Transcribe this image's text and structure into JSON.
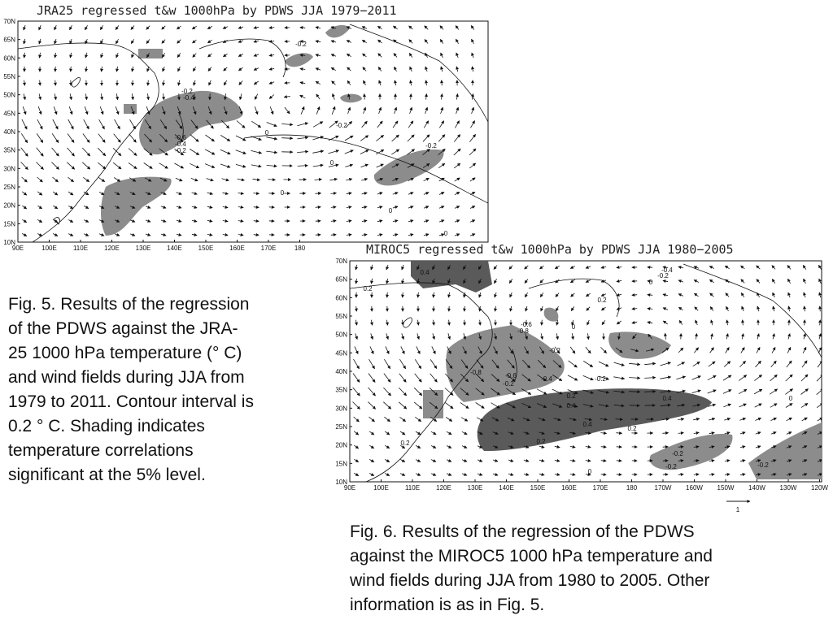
{
  "figures": [
    {
      "title": "JRA25 regressed t&w 1000hPa by PDWS JJA 1979−2011",
      "lat_labels": [
        "70N",
        "65N",
        "60N",
        "55N",
        "50N",
        "45N",
        "40N",
        "35N",
        "30N",
        "25N",
        "20N",
        "15N",
        "10N"
      ],
      "lon_labels": [
        "90E",
        "100E",
        "110E",
        "120E",
        "130E",
        "140E",
        "150E",
        "160E",
        "170E",
        "180"
      ],
      "contour_labels": [
        "-0.2",
        "-0.2",
        "-0.4",
        "-0.2",
        "0",
        "-0.6",
        "-0.4",
        "-0.2",
        "-0.2",
        "0",
        "0",
        "0",
        "0"
      ]
    },
    {
      "title": "MIROC5 regressed t&w 1000hPa by PDWS JJA 1980−2005",
      "lat_labels": [
        "70N",
        "65N",
        "60N",
        "55N",
        "50N",
        "45N",
        "40N",
        "35N",
        "30N",
        "25N",
        "20N",
        "15N",
        "10N"
      ],
      "lon_labels": [
        "90E",
        "100E",
        "110E",
        "120E",
        "130E",
        "140E",
        "150E",
        "160E",
        "170E",
        "180",
        "170W",
        "160W",
        "150W",
        "140W",
        "130W",
        "120W"
      ],
      "contour_labels": [
        "0.4",
        "0.2",
        "-0.4",
        "-0.2",
        "0",
        "0.2",
        "-0.6",
        "-0.8",
        "0",
        "-0.2",
        "-0.8",
        "-0.6",
        "-0.2",
        "-0.4",
        "-0.2",
        "0.2",
        "0.4",
        "0.4",
        "0.4",
        "0.2",
        "0.2",
        "0.2",
        "-0.2",
        "-0.2",
        "-0.2",
        "0",
        "0"
      ],
      "wind_scale_label": "1"
    }
  ],
  "captions": [
    [
      "Fig. 5. Results of the regression",
      "of the PDWS against the JRA-",
      "25 1000 hPa temperature (° C)",
      "and wind fields during JJA from",
      "1979 to 2011. Contour interval is",
      "0.2 ° C. Shading indicates",
      "temperature correlations",
      "significant at the 5% level."
    ],
    [
      "Fig. 6. Results of the regression of the PDWS",
      "against the MIROC5 1000 hPa temperature and",
      "wind fields during JJA from 1980 to 2005. Other",
      "information is as in Fig. 5."
    ]
  ]
}
